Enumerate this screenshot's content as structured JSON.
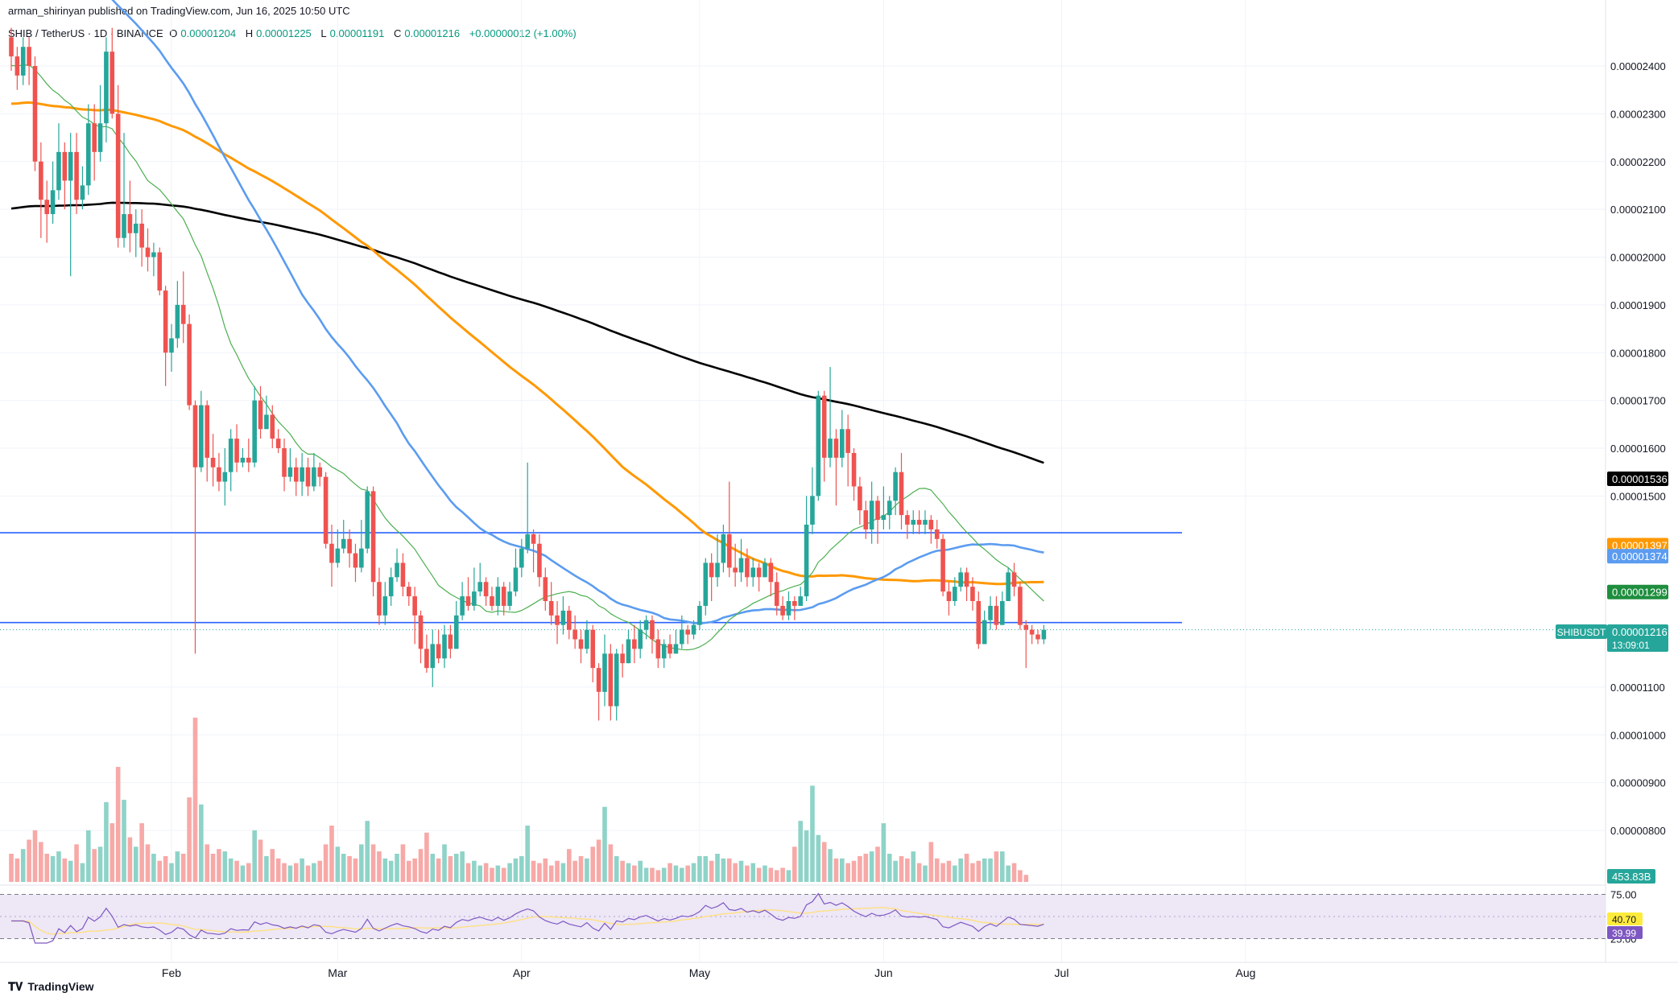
{
  "header": {
    "published": "arman_shirinyan published on TradingView.com, Jun 16, 2025 10:50 UTC"
  },
  "legend": {
    "symbol": "SHIB / TetherUS · 1D · BINANCE",
    "o_label": "O",
    "o": "0.00001204",
    "h_label": "H",
    "h": "0.00001225",
    "l_label": "L",
    "l": "0.00001191",
    "c_label": "C",
    "c": "0.00001216",
    "change": "+0.00000012 (+1.00%)"
  },
  "footer": {
    "brand": "TradingView"
  },
  "colors": {
    "up": "#26a69a",
    "down": "#ef5350",
    "up_volume": "#8fd3c8",
    "down_volume": "#f7a9a7",
    "ma_black": "#000000",
    "ma_orange": "#ff9800",
    "ma_blue": "#5b9cf0",
    "ma_green": "#4caf50",
    "hline": "#2962ff",
    "rsi": "#7e57c2",
    "rsi_ma": "#ffe082",
    "rsi_band": "#ede7f6"
  },
  "chart_data": {
    "type": "candlestick",
    "symbol": "SHIBUSDT",
    "timeframe": "1D",
    "exchange": "BINANCE",
    "y_range": [
      7.6e-06,
      2.48e-05
    ],
    "y_ticks": [
      "0.00002400",
      "0.00002300",
      "0.00002200",
      "0.00002100",
      "0.00002000",
      "0.00001900",
      "0.00001800",
      "0.00001700",
      "0.00001600",
      "0.00001500",
      "0.00001100",
      "0.00001000",
      "0.00000900",
      "0.00000800"
    ],
    "x_labels": [
      "Feb",
      "Mar",
      "Apr",
      "May",
      "Jun",
      "Jul",
      "Aug"
    ],
    "x_label_day_index": [
      27,
      55,
      86,
      116,
      147,
      177,
      208
    ],
    "horizontal_lines": [
      1.423e-05,
      1.235e-05
    ],
    "price_badges": [
      {
        "label": "",
        "value": "0.00001536",
        "color": "#000000"
      },
      {
        "label": "",
        "value": "0.00001397",
        "color": "#ff9800"
      },
      {
        "label": "",
        "value": "0.00001374",
        "color": "#5b9cf0"
      },
      {
        "label": "",
        "value": "0.00001299",
        "color": "#1e8e3e"
      },
      {
        "label": "SHIBUSDT",
        "value": "0.00001216",
        "countdown": "13:09:01",
        "color": "#26a69a"
      }
    ],
    "volume_badge": "453.83B",
    "candles": [
      [
        24.6,
        24.2,
        24.8,
        23.9
      ],
      [
        24.2,
        23.8,
        24.4,
        23.5
      ],
      [
        23.8,
        24.4,
        24.6,
        23.6
      ],
      [
        24.4,
        24.0,
        24.6,
        23.6
      ],
      [
        24.0,
        22.0,
        24.2,
        21.8
      ],
      [
        22.0,
        21.2,
        22.4,
        20.4
      ],
      [
        21.2,
        20.9,
        21.6,
        20.3
      ],
      [
        20.9,
        21.4,
        22.0,
        20.7
      ],
      [
        21.4,
        22.2,
        22.8,
        21.2
      ],
      [
        22.2,
        21.6,
        22.4,
        21.0
      ],
      [
        21.6,
        22.2,
        22.6,
        19.6
      ],
      [
        22.2,
        21.2,
        22.6,
        20.9
      ],
      [
        21.2,
        21.5,
        21.9,
        21.0
      ],
      [
        21.5,
        22.8,
        23.2,
        21.3
      ],
      [
        22.8,
        22.2,
        23.2,
        21.6
      ],
      [
        22.2,
        22.8,
        23.6,
        22.0
      ],
      [
        22.8,
        24.3,
        24.6,
        22.4
      ],
      [
        24.3,
        23.0,
        24.8,
        22.9
      ],
      [
        23.0,
        20.4,
        23.6,
        20.2
      ],
      [
        20.4,
        20.9,
        22.6,
        20.2
      ],
      [
        20.9,
        20.5,
        21.6,
        20.1
      ],
      [
        20.5,
        20.7,
        21.0,
        20.0
      ],
      [
        20.7,
        20.2,
        21.0,
        19.8
      ],
      [
        20.2,
        20.0,
        20.6,
        19.7
      ],
      [
        20.0,
        20.1,
        20.3,
        19.6
      ],
      [
        20.1,
        19.3,
        20.2,
        19.2
      ],
      [
        19.3,
        18.0,
        19.4,
        17.3
      ],
      [
        18.0,
        18.3,
        18.6,
        17.6
      ],
      [
        18.3,
        19.0,
        19.5,
        18.1
      ],
      [
        19.0,
        18.6,
        19.7,
        18.2
      ],
      [
        18.6,
        16.9,
        18.8,
        16.8
      ],
      [
        16.9,
        15.6,
        17.0,
        11.7
      ],
      [
        15.6,
        16.9,
        17.2,
        15.5
      ],
      [
        16.9,
        15.8,
        17.0,
        15.3
      ],
      [
        15.8,
        15.6,
        16.3,
        15.2
      ],
      [
        15.6,
        15.3,
        15.9,
        15.1
      ],
      [
        15.3,
        15.5,
        16.0,
        14.8
      ],
      [
        15.5,
        16.2,
        16.4,
        15.1
      ],
      [
        16.2,
        15.7,
        16.5,
        15.5
      ],
      [
        15.7,
        15.8,
        16.0,
        15.6
      ],
      [
        15.8,
        15.7,
        16.2,
        15.5
      ],
      [
        15.7,
        17.0,
        17.3,
        15.6
      ],
      [
        17.0,
        16.4,
        17.3,
        16.2
      ],
      [
        16.4,
        16.7,
        17.1,
        16.4
      ],
      [
        16.7,
        16.2,
        16.9,
        16.0
      ],
      [
        16.2,
        16.0,
        16.4,
        15.9
      ],
      [
        16.0,
        15.4,
        16.2,
        15.1
      ],
      [
        15.4,
        15.6,
        16.0,
        15.3
      ],
      [
        15.6,
        15.3,
        15.8,
        15.0
      ],
      [
        15.3,
        15.6,
        15.9,
        15.0
      ],
      [
        15.6,
        15.2,
        15.8,
        15.0
      ],
      [
        15.2,
        15.6,
        15.9,
        15.1
      ],
      [
        15.6,
        15.4,
        15.7,
        15.2
      ],
      [
        15.4,
        14.0,
        15.5,
        13.9
      ],
      [
        14.0,
        13.6,
        14.4,
        13.1
      ],
      [
        13.6,
        13.9,
        14.3,
        13.5
      ],
      [
        13.9,
        14.1,
        14.5,
        13.8
      ],
      [
        14.1,
        13.8,
        14.3,
        13.5
      ],
      [
        13.8,
        13.5,
        14.0,
        13.2
      ],
      [
        13.5,
        13.9,
        14.5,
        13.4
      ],
      [
        13.9,
        15.1,
        15.2,
        13.8
      ],
      [
        15.1,
        13.2,
        15.2,
        12.9
      ],
      [
        13.2,
        12.5,
        13.5,
        12.3
      ],
      [
        12.5,
        12.9,
        13.2,
        12.3
      ],
      [
        12.9,
        13.3,
        13.5,
        12.7
      ],
      [
        13.3,
        13.6,
        13.9,
        13.2
      ],
      [
        13.6,
        13.1,
        13.8,
        12.9
      ],
      [
        13.1,
        12.9,
        13.2,
        12.7
      ],
      [
        12.9,
        12.5,
        13.1,
        11.9
      ],
      [
        12.5,
        11.8,
        12.6,
        11.5
      ],
      [
        11.8,
        11.4,
        12.1,
        11.3
      ],
      [
        11.4,
        11.9,
        12.2,
        11.0
      ],
      [
        11.9,
        11.6,
        12.2,
        11.5
      ],
      [
        11.6,
        12.1,
        12.3,
        11.4
      ],
      [
        12.1,
        11.8,
        12.3,
        11.6
      ],
      [
        11.8,
        12.5,
        12.8,
        11.8
      ],
      [
        12.5,
        12.9,
        13.2,
        12.4
      ],
      [
        12.9,
        12.7,
        13.3,
        12.6
      ],
      [
        12.7,
        13.0,
        13.5,
        12.6
      ],
      [
        13.0,
        13.2,
        13.6,
        12.9
      ],
      [
        13.2,
        12.9,
        13.3,
        12.7
      ],
      [
        12.9,
        12.7,
        13.1,
        12.6
      ],
      [
        12.7,
        13.1,
        13.3,
        12.5
      ],
      [
        13.1,
        12.7,
        13.2,
        12.5
      ],
      [
        12.7,
        13.0,
        13.2,
        12.6
      ],
      [
        13.0,
        13.5,
        13.9,
        12.9
      ],
      [
        13.5,
        13.9,
        14.1,
        13.3
      ],
      [
        13.9,
        14.2,
        15.7,
        13.8
      ],
      [
        14.2,
        14.0,
        14.3,
        13.4
      ],
      [
        14.0,
        13.3,
        14.2,
        13.1
      ],
      [
        13.3,
        12.8,
        13.5,
        12.6
      ],
      [
        12.8,
        12.5,
        13.2,
        12.3
      ],
      [
        12.5,
        12.3,
        12.8,
        11.9
      ],
      [
        12.3,
        12.6,
        12.9,
        12.1
      ],
      [
        12.6,
        12.2,
        12.7,
        12.0
      ],
      [
        12.2,
        12.0,
        12.5,
        11.8
      ],
      [
        12.0,
        11.8,
        12.2,
        11.5
      ],
      [
        11.8,
        12.2,
        12.4,
        11.7
      ],
      [
        12.2,
        11.4,
        12.3,
        11.1
      ],
      [
        11.4,
        10.9,
        11.5,
        10.3
      ],
      [
        10.9,
        11.7,
        12.1,
        10.6
      ],
      [
        11.7,
        10.6,
        11.9,
        10.3
      ],
      [
        10.6,
        11.7,
        11.8,
        10.3
      ],
      [
        11.7,
        11.5,
        11.9,
        11.2
      ],
      [
        11.5,
        12.0,
        12.2,
        11.5
      ],
      [
        12.0,
        11.8,
        12.3,
        11.5
      ],
      [
        11.8,
        12.2,
        12.4,
        11.6
      ],
      [
        12.2,
        12.4,
        12.5,
        12.0
      ],
      [
        12.4,
        12.0,
        12.5,
        11.7
      ],
      [
        12.0,
        11.6,
        12.2,
        11.4
      ],
      [
        11.6,
        11.9,
        12.0,
        11.4
      ],
      [
        11.9,
        11.7,
        12.1,
        11.6
      ],
      [
        11.7,
        11.9,
        12.2,
        11.7
      ],
      [
        11.9,
        12.2,
        12.5,
        11.8
      ],
      [
        12.2,
        12.1,
        12.3,
        11.9
      ],
      [
        12.1,
        12.3,
        12.4,
        12.0
      ],
      [
        12.3,
        12.7,
        12.8,
        12.2
      ],
      [
        12.7,
        13.6,
        13.7,
        12.5
      ],
      [
        13.6,
        13.3,
        13.8,
        12.8
      ],
      [
        13.3,
        13.6,
        14.2,
        13.1
      ],
      [
        13.6,
        14.2,
        14.4,
        13.4
      ],
      [
        14.2,
        13.5,
        15.3,
        13.3
      ],
      [
        13.5,
        13.4,
        14.0,
        13.1
      ],
      [
        13.4,
        13.7,
        14.1,
        13.2
      ],
      [
        13.7,
        13.3,
        13.9,
        13.1
      ],
      [
        13.3,
        13.5,
        13.7,
        13.1
      ],
      [
        13.5,
        13.3,
        13.6,
        13.0
      ],
      [
        13.3,
        13.6,
        13.7,
        13.3
      ],
      [
        13.6,
        13.2,
        13.7,
        12.9
      ],
      [
        13.2,
        12.7,
        13.4,
        12.5
      ],
      [
        12.7,
        12.5,
        12.9,
        12.4
      ],
      [
        12.5,
        12.8,
        13.0,
        12.4
      ],
      [
        12.8,
        12.7,
        12.9,
        12.4
      ],
      [
        12.7,
        12.9,
        13.1,
        12.7
      ],
      [
        12.9,
        14.4,
        15.0,
        12.8
      ],
      [
        14.4,
        15.0,
        15.6,
        14.2
      ],
      [
        15.0,
        17.1,
        17.2,
        14.9
      ],
      [
        17.1,
        15.8,
        17.2,
        15.3
      ],
      [
        15.8,
        16.2,
        17.7,
        15.6
      ],
      [
        16.2,
        15.8,
        16.4,
        14.8
      ],
      [
        15.8,
        16.4,
        16.8,
        15.6
      ],
      [
        16.4,
        15.9,
        16.7,
        15.2
      ],
      [
        15.9,
        15.2,
        16.0,
        14.9
      ],
      [
        15.2,
        14.7,
        15.4,
        14.4
      ],
      [
        14.7,
        14.3,
        14.9,
        14.1
      ],
      [
        14.3,
        14.9,
        15.3,
        14.0
      ],
      [
        14.9,
        14.5,
        15.0,
        14.0
      ],
      [
        14.5,
        14.6,
        15.2,
        14.3
      ],
      [
        14.6,
        14.9,
        15.0,
        14.3
      ],
      [
        14.9,
        15.5,
        15.6,
        14.6
      ],
      [
        15.5,
        14.6,
        15.9,
        14.3
      ],
      [
        14.6,
        14.4,
        14.7,
        14.1
      ],
      [
        14.4,
        14.5,
        14.7,
        14.2
      ],
      [
        14.5,
        14.4,
        14.7,
        14.2
      ],
      [
        14.4,
        14.5,
        14.7,
        14.2
      ],
      [
        14.5,
        14.3,
        14.6,
        14.0
      ],
      [
        14.3,
        14.1,
        14.5,
        13.9
      ],
      [
        14.1,
        13.0,
        14.2,
        12.9
      ],
      [
        13.0,
        12.8,
        13.2,
        12.5
      ],
      [
        12.8,
        13.1,
        13.3,
        12.7
      ],
      [
        13.1,
        13.4,
        13.5,
        13.0
      ],
      [
        13.4,
        13.1,
        13.5,
        12.8
      ],
      [
        13.1,
        12.8,
        13.3,
        12.6
      ],
      [
        12.8,
        11.9,
        13.0,
        11.8
      ],
      [
        11.9,
        12.4,
        12.6,
        11.9
      ],
      [
        12.4,
        12.7,
        12.9,
        12.2
      ],
      [
        12.7,
        12.3,
        12.9,
        12.2
      ],
      [
        12.3,
        12.8,
        13.0,
        12.3
      ],
      [
        12.8,
        13.4,
        13.5,
        12.8
      ],
      [
        13.4,
        13.1,
        13.6,
        12.9
      ],
      [
        13.1,
        12.3,
        13.2,
        12.2
      ],
      [
        12.3,
        12.2,
        12.4,
        11.4
      ],
      [
        12.2,
        12.1,
        12.3,
        11.9
      ],
      [
        12.1,
        12.0,
        12.2,
        11.9
      ],
      [
        12.0,
        12.2,
        12.3,
        11.9
      ]
    ],
    "volume_scale_max": 3.6,
    "volume": [
      1.2,
      1.0,
      1.4,
      1.8,
      2.2,
      1.7,
      1.2,
      1.1,
      1.3,
      1.0,
      0.9,
      1.6,
      0.8,
      2.2,
      1.4,
      1.5,
      3.4,
      2.5,
      4.9,
      3.5,
      1.9,
      1.5,
      2.5,
      1.6,
      1.2,
      0.9,
      1.1,
      0.8,
      1.3,
      1.2,
      3.6,
      7.0,
      3.3,
      1.6,
      1.2,
      1.4,
      1.3,
      1.0,
      0.9,
      0.7,
      0.8,
      2.2,
      1.8,
      1.1,
      1.4,
      1.0,
      0.8,
      0.7,
      0.8,
      1.0,
      0.7,
      0.8,
      0.9,
      1.6,
      2.4,
      1.5,
      1.2,
      1.1,
      1.0,
      1.6,
      2.6,
      1.6,
      1.3,
      1.0,
      0.9,
      1.2,
      1.6,
      0.9,
      1.0,
      1.4,
      2.1,
      1.2,
      1.0,
      1.6,
      1.1,
      1.2,
      1.3,
      0.8,
      0.9,
      0.7,
      0.8,
      0.6,
      0.7,
      0.6,
      0.8,
      1.0,
      1.1,
      2.4,
      0.9,
      0.8,
      1.0,
      0.7,
      0.9,
      0.8,
      1.4,
      0.9,
      1.1,
      1.0,
      1.5,
      1.8,
      3.2,
      1.6,
      1.1,
      0.9,
      0.8,
      0.7,
      0.9,
      0.6,
      0.6,
      0.5,
      0.6,
      0.8,
      0.7,
      0.6,
      0.7,
      0.8,
      1.1,
      1.1,
      0.9,
      1.2,
      1.0,
      1.0,
      0.8,
      0.9,
      0.7,
      0.8,
      0.6,
      0.7,
      0.6,
      0.5,
      0.6,
      0.5,
      1.5,
      2.6,
      2.2,
      4.1,
      2.0,
      1.7,
      1.4,
      1.0,
      1.0,
      0.8,
      0.9,
      1.1,
      1.2,
      1.3,
      1.5,
      2.5,
      1.2,
      0.9,
      1.1,
      1.0,
      1.3,
      0.8,
      0.7,
      1.7,
      1.0,
      0.8,
      0.9,
      0.7,
      1.0,
      1.2,
      0.8,
      0.9,
      1.0,
      1.0,
      1.3,
      1.3,
      0.7,
      0.8,
      0.5,
      0.3
    ],
    "rsi": {
      "y_range": [
        20,
        80
      ],
      "levels": [
        75.0,
        25.0
      ],
      "tick_labels": [
        "75.00",
        "25.00"
      ],
      "value": "39.99",
      "ma_value": "40.70"
    }
  }
}
